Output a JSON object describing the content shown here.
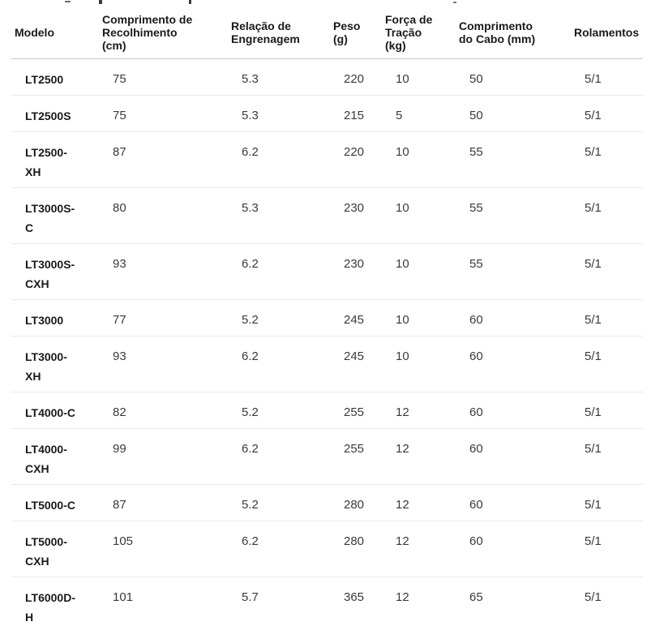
{
  "colors": {
    "background": "#ffffff",
    "header_text": "#1a1a1a",
    "value_text": "#3a3a3a",
    "header_border": "#c6c6c6",
    "row_border": "#e9e9e9"
  },
  "table": {
    "columns": [
      {
        "key": "model",
        "label": "Modelo"
      },
      {
        "key": "recolhimento",
        "label": "Comprimento de Recolhimento (cm)"
      },
      {
        "key": "engrenagem",
        "label": "Relação de Engrenagem"
      },
      {
        "key": "peso",
        "label": "Peso (g)"
      },
      {
        "key": "tracao",
        "label": "Força de Tração (kg)"
      },
      {
        "key": "cabo",
        "label": "Comprimento do Cabo (mm)"
      },
      {
        "key": "rolamentos",
        "label": "Rolamentos"
      }
    ],
    "rows": [
      {
        "model": "LT2500",
        "recolhimento": "75",
        "engrenagem": "5.3",
        "peso": "220",
        "tracao": "10",
        "cabo": "50",
        "rolamentos": "5/1"
      },
      {
        "model": "LT2500S",
        "recolhimento": "75",
        "engrenagem": "5.3",
        "peso": "215",
        "tracao": "5",
        "cabo": "50",
        "rolamentos": "5/1"
      },
      {
        "model": "LT2500-XH",
        "recolhimento": "87",
        "engrenagem": "6.2",
        "peso": "220",
        "tracao": "10",
        "cabo": "55",
        "rolamentos": "5/1"
      },
      {
        "model": "LT3000S-C",
        "recolhimento": "80",
        "engrenagem": "5.3",
        "peso": "230",
        "tracao": "10",
        "cabo": "55",
        "rolamentos": "5/1"
      },
      {
        "model": "LT3000S-CXH",
        "recolhimento": "93",
        "engrenagem": "6.2",
        "peso": "230",
        "tracao": "10",
        "cabo": "55",
        "rolamentos": "5/1"
      },
      {
        "model": "LT3000",
        "recolhimento": "77",
        "engrenagem": "5.2",
        "peso": "245",
        "tracao": "10",
        "cabo": "60",
        "rolamentos": "5/1"
      },
      {
        "model": "LT3000-XH",
        "recolhimento": "93",
        "engrenagem": "6.2",
        "peso": "245",
        "tracao": "10",
        "cabo": "60",
        "rolamentos": "5/1"
      },
      {
        "model": "LT4000-C",
        "recolhimento": "82",
        "engrenagem": "5.2",
        "peso": "255",
        "tracao": "12",
        "cabo": "60",
        "rolamentos": "5/1"
      },
      {
        "model": "LT4000-CXH",
        "recolhimento": "99",
        "engrenagem": "6.2",
        "peso": "255",
        "tracao": "12",
        "cabo": "60",
        "rolamentos": "5/1"
      },
      {
        "model": "LT5000-C",
        "recolhimento": "87",
        "engrenagem": "5.2",
        "peso": "280",
        "tracao": "12",
        "cabo": "60",
        "rolamentos": "5/1"
      },
      {
        "model": "LT5000-CXH",
        "recolhimento": "105",
        "engrenagem": "6.2",
        "peso": "280",
        "tracao": "12",
        "cabo": "60",
        "rolamentos": "5/1"
      },
      {
        "model": "LT6000D-H",
        "recolhimento": "101",
        "engrenagem": "5.7",
        "peso": "365",
        "tracao": "12",
        "cabo": "65",
        "rolamentos": "5/1"
      }
    ]
  }
}
